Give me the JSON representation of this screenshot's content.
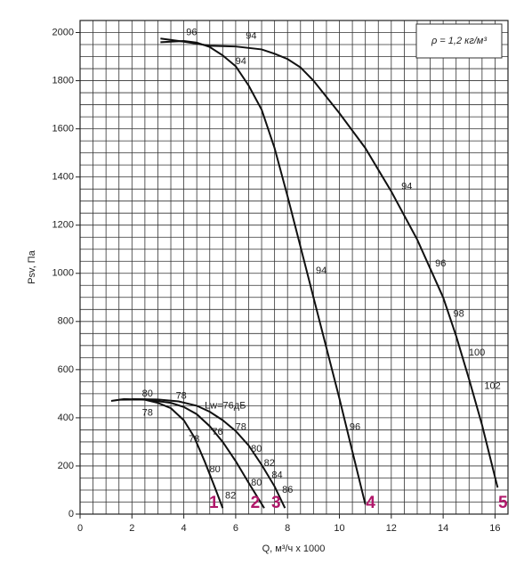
{
  "chart_data": {
    "type": "line",
    "x_label": "Q, м³/ч x 1000",
    "y_label": "Psv, Па",
    "note": "ρ = 1,2 кг/м³",
    "xlim": [
      0,
      16.5
    ],
    "ylim": [
      0,
      2050
    ],
    "xticks": [
      0,
      2,
      4,
      6,
      8,
      10,
      12,
      14,
      16
    ],
    "yticks": [
      0,
      200,
      400,
      600,
      800,
      1000,
      1200,
      1400,
      1600,
      1800,
      2000
    ],
    "grid": true,
    "xminor": 0.5,
    "yminor": 50,
    "series": [
      {
        "name": "1",
        "color": "#111111",
        "x": [
          1.2,
          1.7,
          2.5,
          3.0,
          3.5,
          4.0,
          4.4,
          4.8,
          5.2,
          5.5
        ],
        "values": [
          470,
          478,
          475,
          462,
          440,
          390,
          320,
          220,
          110,
          25
        ]
      },
      {
        "name": "2",
        "color": "#111111",
        "x": [
          1.5,
          2.5,
          3.5,
          4.0,
          4.5,
          5.0,
          5.5,
          6.0,
          6.5,
          7.1
        ],
        "values": [
          475,
          476,
          462,
          445,
          415,
          365,
          300,
          220,
          130,
          25
        ]
      },
      {
        "name": "3",
        "color": "#111111",
        "x": [
          2.0,
          3.0,
          3.8,
          4.5,
          5.0,
          5.5,
          6.0,
          6.5,
          7.0,
          7.5,
          7.9
        ],
        "values": [
          478,
          476,
          468,
          450,
          425,
          390,
          345,
          285,
          205,
          115,
          25
        ]
      },
      {
        "name": "4",
        "color": "#111111",
        "x": [
          3.1,
          4.0,
          4.5,
          5.0,
          5.5,
          6.0,
          6.5,
          7.0,
          7.5,
          8.0,
          8.5,
          9.0,
          9.5,
          10.0,
          10.5,
          11.0
        ],
        "values": [
          1960,
          1965,
          1958,
          1940,
          1905,
          1860,
          1780,
          1680,
          1520,
          1320,
          1110,
          900,
          690,
          480,
          260,
          40
        ]
      },
      {
        "name": "5",
        "color": "#111111",
        "x": [
          3.1,
          4.0,
          5.0,
          6.0,
          7.0,
          7.5,
          8.0,
          8.5,
          9.0,
          10.0,
          11.0,
          12.0,
          13.0,
          14.0,
          14.5,
          15.0,
          15.5,
          16.1
        ],
        "values": [
          1975,
          1962,
          1945,
          1942,
          1930,
          1912,
          1890,
          1855,
          1800,
          1665,
          1520,
          1340,
          1140,
          900,
          740,
          560,
          370,
          110
        ]
      }
    ],
    "annotations": [
      {
        "text": "96",
        "x": 4.3,
        "y": 2000
      },
      {
        "text": "94",
        "x": 6.6,
        "y": 1985
      },
      {
        "text": "94",
        "x": 6.2,
        "y": 1880
      },
      {
        "text": "94",
        "x": 12.6,
        "y": 1360
      },
      {
        "text": "96",
        "x": 13.9,
        "y": 1040
      },
      {
        "text": "98",
        "x": 14.6,
        "y": 830
      },
      {
        "text": "100",
        "x": 15.3,
        "y": 670
      },
      {
        "text": "102",
        "x": 15.9,
        "y": 530
      },
      {
        "text": "94",
        "x": 9.3,
        "y": 1010
      },
      {
        "text": "96",
        "x": 10.6,
        "y": 360
      },
      {
        "text": "80",
        "x": 2.6,
        "y": 500
      },
      {
        "text": "78",
        "x": 3.9,
        "y": 490
      },
      {
        "text": "78",
        "x": 2.6,
        "y": 420
      },
      {
        "text": "Lw=76дБ",
        "x": 5.6,
        "y": 450
      },
      {
        "text": "78",
        "x": 6.2,
        "y": 360
      },
      {
        "text": "76",
        "x": 5.3,
        "y": 340
      },
      {
        "text": "78",
        "x": 4.4,
        "y": 310
      },
      {
        "text": "80",
        "x": 6.8,
        "y": 270
      },
      {
        "text": "80",
        "x": 5.2,
        "y": 185
      },
      {
        "text": "82",
        "x": 7.3,
        "y": 210
      },
      {
        "text": "80",
        "x": 6.8,
        "y": 130
      },
      {
        "text": "84",
        "x": 7.6,
        "y": 160
      },
      {
        "text": "82",
        "x": 5.8,
        "y": 75
      },
      {
        "text": "86",
        "x": 8.0,
        "y": 100
      }
    ]
  }
}
